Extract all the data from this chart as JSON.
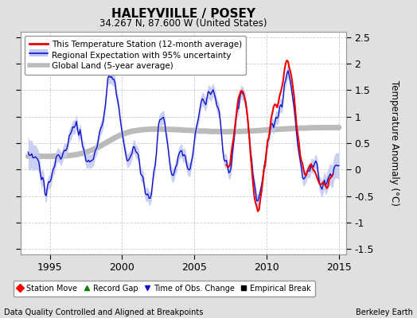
{
  "title": "HALEYVIILLE / POSEY",
  "subtitle": "34.267 N, 87.600 W (United States)",
  "ylabel": "Temperature Anomaly (°C)",
  "xlabel_left": "Data Quality Controlled and Aligned at Breakpoints",
  "xlabel_right": "Berkeley Earth",
  "xlim": [
    1993.0,
    2015.5
  ],
  "ylim": [
    -1.6,
    2.6
  ],
  "yticks": [
    -1.5,
    -1.0,
    -0.5,
    0.0,
    0.5,
    1.0,
    1.5,
    2.0,
    2.5
  ],
  "xticks": [
    1995,
    2000,
    2005,
    2010,
    2015
  ],
  "bg_color": "#e0e0e0",
  "plot_bg_color": "#ffffff",
  "red_color": "#ee0000",
  "blue_color": "#1111cc",
  "blue_fill_color": "#c0c8f0",
  "gray_color": "#bbbbbb",
  "legend_entries": [
    "This Temperature Station (12-month average)",
    "Regional Expectation with 95% uncertainty",
    "Global Land (5-year average)"
  ]
}
